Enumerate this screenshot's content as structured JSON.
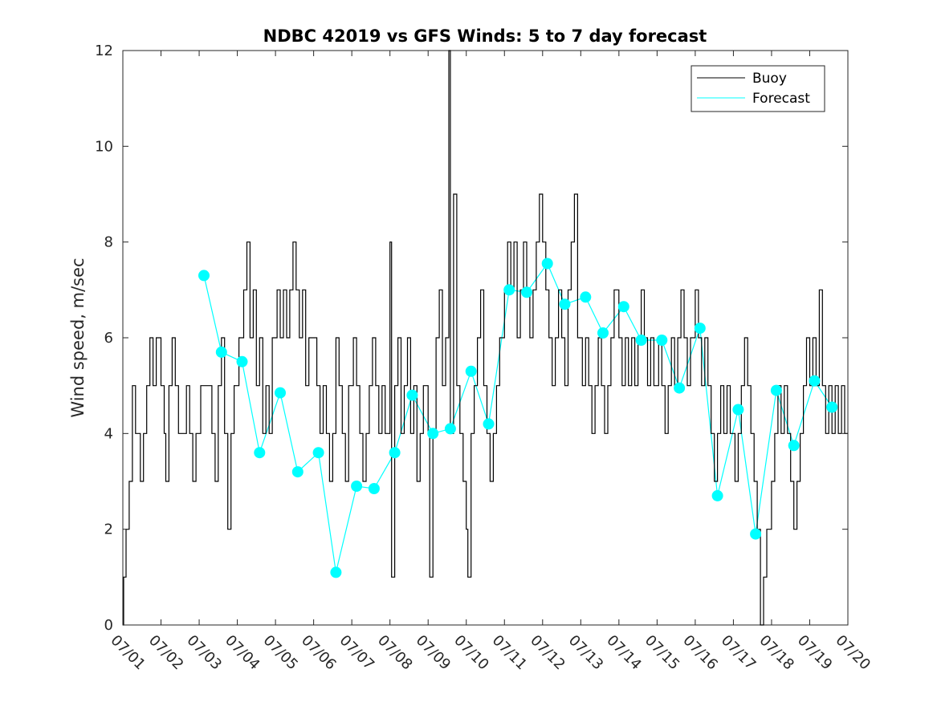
{
  "chart_data": {
    "type": "line",
    "title": "NDBC 42019 vs GFS Winds: 5 to 7 day forecast",
    "xlabel": "",
    "ylabel": "Wind speed, m/sec",
    "xlim": [
      "07/01",
      "07/20"
    ],
    "ylim": [
      0,
      12
    ],
    "x_tick_labels": [
      "07/01",
      "07/02",
      "07/03",
      "07/04",
      "07/05",
      "07/06",
      "07/07",
      "07/08",
      "07/09",
      "07/10",
      "07/11",
      "07/12",
      "07/13",
      "07/14",
      "07/15",
      "07/16",
      "07/17",
      "07/18",
      "07/19",
      "07/20"
    ],
    "y_ticks": [
      0,
      2,
      4,
      6,
      8,
      10,
      12
    ],
    "grid": false,
    "legend_position": "top-right",
    "colors": {
      "buoy": "#000000",
      "forecast": "#00ffff"
    },
    "series": [
      {
        "name": "Buoy",
        "style": "line",
        "points": [
          [
            "07/01 00:00",
            0
          ],
          [
            "07/01 00:30",
            1
          ],
          [
            "07/01 02:00",
            2
          ],
          [
            "07/01 04:00",
            3
          ],
          [
            "07/01 06:00",
            5
          ],
          [
            "07/01 08:00",
            4
          ],
          [
            "07/01 11:00",
            3
          ],
          [
            "07/01 13:00",
            4
          ],
          [
            "07/01 15:00",
            5
          ],
          [
            "07/01 17:00",
            6
          ],
          [
            "07/01 19:00",
            5
          ],
          [
            "07/01 21:00",
            6
          ],
          [
            "07/02 00:00",
            5
          ],
          [
            "07/02 02:00",
            4
          ],
          [
            "07/02 03:00",
            3
          ],
          [
            "07/02 05:00",
            5
          ],
          [
            "07/02 07:00",
            6
          ],
          [
            "07/02 09:00",
            5
          ],
          [
            "07/02 11:00",
            4
          ],
          [
            "07/02 14:00",
            4
          ],
          [
            "07/02 16:00",
            5
          ],
          [
            "07/02 18:00",
            4
          ],
          [
            "07/02 20:00",
            3
          ],
          [
            "07/02 22:00",
            4
          ],
          [
            "07/03 01:00",
            5
          ],
          [
            "07/03 05:00",
            5
          ],
          [
            "07/03 08:00",
            4
          ],
          [
            "07/03 10:00",
            3
          ],
          [
            "07/03 12:00",
            5
          ],
          [
            "07/03 14:00",
            6
          ],
          [
            "07/03 16:00",
            4
          ],
          [
            "07/03 18:00",
            2
          ],
          [
            "07/03 20:00",
            4
          ],
          [
            "07/03 22:00",
            5
          ],
          [
            "07/04 01:00",
            6
          ],
          [
            "07/04 04:00",
            7
          ],
          [
            "07/04 06:00",
            8
          ],
          [
            "07/04 08:00",
            6
          ],
          [
            "07/04 10:00",
            7
          ],
          [
            "07/04 12:00",
            5
          ],
          [
            "07/04 14:00",
            6
          ],
          [
            "07/04 16:00",
            4
          ],
          [
            "07/04 18:00",
            5
          ],
          [
            "07/04 20:00",
            4
          ],
          [
            "07/04 22:00",
            6
          ],
          [
            "07/05 01:00",
            7
          ],
          [
            "07/05 03:00",
            6
          ],
          [
            "07/05 05:00",
            7
          ],
          [
            "07/05 07:00",
            6
          ],
          [
            "07/05 09:00",
            7
          ],
          [
            "07/05 11:00",
            8
          ],
          [
            "07/05 13:00",
            7
          ],
          [
            "07/05 15:00",
            6
          ],
          [
            "07/05 17:00",
            7
          ],
          [
            "07/05 19:00",
            5
          ],
          [
            "07/05 21:00",
            6
          ],
          [
            "07/06 00:00",
            6
          ],
          [
            "07/06 02:00",
            5
          ],
          [
            "07/06 04:00",
            4
          ],
          [
            "07/06 06:00",
            5
          ],
          [
            "07/06 08:00",
            4
          ],
          [
            "07/06 10:00",
            3
          ],
          [
            "07/06 12:00",
            4
          ],
          [
            "07/06 14:00",
            6
          ],
          [
            "07/06 16:00",
            5
          ],
          [
            "07/06 18:00",
            4
          ],
          [
            "07/06 20:00",
            3
          ],
          [
            "07/06 22:00",
            5
          ],
          [
            "07/07 01:00",
            6
          ],
          [
            "07/07 03:00",
            5
          ],
          [
            "07/07 05:00",
            4
          ],
          [
            "07/07 07:00",
            3
          ],
          [
            "07/07 09:00",
            4
          ],
          [
            "07/07 11:00",
            5
          ],
          [
            "07/07 13:00",
            6
          ],
          [
            "07/07 15:00",
            5
          ],
          [
            "07/07 17:00",
            4
          ],
          [
            "07/07 19:00",
            5
          ],
          [
            "07/07 21:00",
            4
          ],
          [
            "07/08 00:00",
            8
          ],
          [
            "07/08 01:00",
            1
          ],
          [
            "07/08 03:00",
            5
          ],
          [
            "07/08 05:00",
            6
          ],
          [
            "07/08 07:00",
            4
          ],
          [
            "07/08 09:00",
            5
          ],
          [
            "07/08 11:00",
            6
          ],
          [
            "07/08 13:00",
            4
          ],
          [
            "07/08 15:00",
            5
          ],
          [
            "07/08 17:00",
            3
          ],
          [
            "07/08 19:00",
            4
          ],
          [
            "07/08 21:00",
            5
          ],
          [
            "07/09 00:00",
            4
          ],
          [
            "07/09 01:00",
            1
          ],
          [
            "07/09 03:00",
            4
          ],
          [
            "07/09 05:00",
            6
          ],
          [
            "07/09 07:00",
            7
          ],
          [
            "07/09 09:00",
            5
          ],
          [
            "07/09 11:00",
            6
          ],
          [
            "07/09 13:00",
            12
          ],
          [
            "07/09 14:00",
            4
          ],
          [
            "07/09 16:00",
            9
          ],
          [
            "07/09 18:00",
            5
          ],
          [
            "07/09 20:00",
            4
          ],
          [
            "07/09 22:00",
            3
          ],
          [
            "07/10 00:00",
            2
          ],
          [
            "07/10 01:00",
            1
          ],
          [
            "07/10 03:00",
            4
          ],
          [
            "07/10 05:00",
            5
          ],
          [
            "07/10 07:00",
            6
          ],
          [
            "07/10 09:00",
            7
          ],
          [
            "07/10 11:00",
            5
          ],
          [
            "07/10 13:00",
            4
          ],
          [
            "07/10 15:00",
            3
          ],
          [
            "07/10 17:00",
            4
          ],
          [
            "07/10 19:00",
            5
          ],
          [
            "07/10 21:00",
            6
          ],
          [
            "07/11 00:00",
            7
          ],
          [
            "07/11 02:00",
            8
          ],
          [
            "07/11 04:00",
            7
          ],
          [
            "07/11 06:00",
            8
          ],
          [
            "07/11 08:00",
            6
          ],
          [
            "07/11 10:00",
            7
          ],
          [
            "07/11 12:00",
            8
          ],
          [
            "07/11 14:00",
            7
          ],
          [
            "07/11 16:00",
            6
          ],
          [
            "07/11 18:00",
            7
          ],
          [
            "07/11 20:00",
            8
          ],
          [
            "07/11 22:00",
            9
          ],
          [
            "07/12 00:00",
            8
          ],
          [
            "07/12 02:00",
            7
          ],
          [
            "07/12 04:00",
            6
          ],
          [
            "07/12 06:00",
            5
          ],
          [
            "07/12 08:00",
            6
          ],
          [
            "07/12 10:00",
            7
          ],
          [
            "07/12 12:00",
            6
          ],
          [
            "07/12 14:00",
            5
          ],
          [
            "07/12 16:00",
            7
          ],
          [
            "07/12 18:00",
            8
          ],
          [
            "07/12 20:00",
            9
          ],
          [
            "07/12 22:00",
            6
          ],
          [
            "07/13 01:00",
            5
          ],
          [
            "07/13 03:00",
            6
          ],
          [
            "07/13 05:00",
            5
          ],
          [
            "07/13 07:00",
            4
          ],
          [
            "07/13 09:00",
            5
          ],
          [
            "07/13 11:00",
            6
          ],
          [
            "07/13 13:00",
            5
          ],
          [
            "07/13 15:00",
            4
          ],
          [
            "07/13 17:00",
            5
          ],
          [
            "07/13 19:00",
            6
          ],
          [
            "07/13 21:00",
            7
          ],
          [
            "07/14 00:00",
            6
          ],
          [
            "07/14 02:00",
            5
          ],
          [
            "07/14 04:00",
            6
          ],
          [
            "07/14 06:00",
            5
          ],
          [
            "07/14 08:00",
            6
          ],
          [
            "07/14 10:00",
            5
          ],
          [
            "07/14 12:00",
            6
          ],
          [
            "07/14 14:00",
            7
          ],
          [
            "07/14 16:00",
            6
          ],
          [
            "07/14 18:00",
            5
          ],
          [
            "07/14 20:00",
            6
          ],
          [
            "07/14 22:00",
            5
          ],
          [
            "07/15 01:00",
            6
          ],
          [
            "07/15 03:00",
            5
          ],
          [
            "07/15 05:00",
            4
          ],
          [
            "07/15 07:00",
            5
          ],
          [
            "07/15 09:00",
            6
          ],
          [
            "07/15 11:00",
            5
          ],
          [
            "07/15 13:00",
            6
          ],
          [
            "07/15 15:00",
            7
          ],
          [
            "07/15 17:00",
            6
          ],
          [
            "07/15 19:00",
            5
          ],
          [
            "07/15 21:00",
            6
          ],
          [
            "07/16 00:00",
            7
          ],
          [
            "07/16 02:00",
            6
          ],
          [
            "07/16 04:00",
            5
          ],
          [
            "07/16 06:00",
            6
          ],
          [
            "07/16 08:00",
            5
          ],
          [
            "07/16 10:00",
            4
          ],
          [
            "07/16 12:00",
            3
          ],
          [
            "07/16 14:00",
            4
          ],
          [
            "07/16 16:00",
            5
          ],
          [
            "07/16 18:00",
            4
          ],
          [
            "07/16 20:00",
            5
          ],
          [
            "07/16 22:00",
            4
          ],
          [
            "07/17 01:00",
            3
          ],
          [
            "07/17 03:00",
            4
          ],
          [
            "07/17 05:00",
            5
          ],
          [
            "07/17 07:00",
            6
          ],
          [
            "07/17 09:00",
            5
          ],
          [
            "07/17 11:00",
            4
          ],
          [
            "07/17 13:00",
            3
          ],
          [
            "07/17 15:00",
            2
          ],
          [
            "07/17 17:00",
            0
          ],
          [
            "07/17 19:00",
            1
          ],
          [
            "07/17 21:00",
            2
          ],
          [
            "07/18 00:00",
            3
          ],
          [
            "07/18 02:00",
            4
          ],
          [
            "07/18 04:00",
            5
          ],
          [
            "07/18 06:00",
            4
          ],
          [
            "07/18 08:00",
            5
          ],
          [
            "07/18 10:00",
            4
          ],
          [
            "07/18 12:00",
            3
          ],
          [
            "07/18 14:00",
            2
          ],
          [
            "07/18 16:00",
            3
          ],
          [
            "07/18 18:00",
            4
          ],
          [
            "07/18 20:00",
            5
          ],
          [
            "07/18 22:00",
            6
          ],
          [
            "07/19 00:00",
            5
          ],
          [
            "07/19 02:00",
            6
          ],
          [
            "07/19 04:00",
            5
          ],
          [
            "07/19 06:00",
            7
          ],
          [
            "07/19 08:00",
            5
          ],
          [
            "07/19 10:00",
            4
          ],
          [
            "07/19 12:00",
            5
          ],
          [
            "07/19 14:00",
            4
          ],
          [
            "07/19 16:00",
            5
          ],
          [
            "07/19 18:00",
            4
          ],
          [
            "07/19 20:00",
            5
          ],
          [
            "07/19 22:00",
            4
          ],
          [
            "07/20 00:00",
            4
          ]
        ]
      },
      {
        "name": "Forecast",
        "style": "line+markers",
        "points": [
          [
            "07/03 03:00",
            7.3
          ],
          [
            "07/03 14:00",
            5.7
          ],
          [
            "07/04 03:00",
            5.5
          ],
          [
            "07/04 14:00",
            3.6
          ],
          [
            "07/05 03:00",
            4.85
          ],
          [
            "07/05 14:00",
            3.2
          ],
          [
            "07/06 03:00",
            3.6
          ],
          [
            "07/06 14:00",
            1.1
          ],
          [
            "07/07 03:00",
            2.9
          ],
          [
            "07/07 14:00",
            2.85
          ],
          [
            "07/08 03:00",
            3.6
          ],
          [
            "07/08 14:00",
            4.8
          ],
          [
            "07/09 03:00",
            4.0
          ],
          [
            "07/09 14:00",
            4.1
          ],
          [
            "07/10 03:00",
            5.3
          ],
          [
            "07/10 14:00",
            4.2
          ],
          [
            "07/11 03:00",
            7.0
          ],
          [
            "07/11 14:00",
            6.95
          ],
          [
            "07/12 03:00",
            7.55
          ],
          [
            "07/12 14:00",
            6.7
          ],
          [
            "07/13 03:00",
            6.85
          ],
          [
            "07/13 14:00",
            6.1
          ],
          [
            "07/14 03:00",
            6.65
          ],
          [
            "07/14 14:00",
            5.95
          ],
          [
            "07/15 03:00",
            5.95
          ],
          [
            "07/15 14:00",
            4.95
          ],
          [
            "07/16 03:00",
            6.2
          ],
          [
            "07/16 14:00",
            2.7
          ],
          [
            "07/17 03:00",
            4.5
          ],
          [
            "07/17 14:00",
            1.9
          ],
          [
            "07/18 03:00",
            4.9
          ],
          [
            "07/18 14:00",
            3.75
          ],
          [
            "07/19 03:00",
            5.1
          ],
          [
            "07/19 14:00",
            4.55
          ]
        ]
      }
    ]
  }
}
